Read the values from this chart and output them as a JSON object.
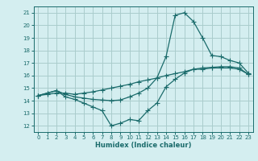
{
  "title": "",
  "xlabel": "Humidex (Indice chaleur)",
  "bg_color": "#d4eef0",
  "grid_color": "#aacccc",
  "line_color": "#1a6b6b",
  "xlim": [
    -0.5,
    23.5
  ],
  "ylim": [
    11.5,
    21.5
  ],
  "xticks": [
    0,
    1,
    2,
    3,
    4,
    5,
    6,
    7,
    8,
    9,
    10,
    11,
    12,
    13,
    14,
    15,
    16,
    17,
    18,
    19,
    20,
    21,
    22,
    23
  ],
  "yticks": [
    12,
    13,
    14,
    15,
    16,
    17,
    18,
    19,
    20,
    21
  ],
  "line1_x": [
    0,
    1,
    2,
    3,
    4,
    5,
    6,
    7,
    8,
    9,
    10,
    11,
    12,
    13,
    14,
    15,
    16,
    17,
    18,
    19,
    20,
    21,
    22,
    23
  ],
  "line1_y": [
    14.4,
    14.6,
    14.8,
    14.5,
    14.3,
    14.2,
    14.1,
    14.05,
    14.0,
    14.05,
    14.3,
    14.6,
    15.0,
    15.8,
    17.5,
    20.8,
    21.0,
    20.3,
    19.0,
    17.6,
    17.5,
    17.2,
    17.0,
    16.2
  ],
  "line2_x": [
    0,
    1,
    2,
    3,
    4,
    5,
    6,
    7,
    8,
    9,
    10,
    11,
    12,
    13,
    14,
    15,
    16,
    17,
    18,
    19,
    20,
    21,
    22,
    23
  ],
  "line2_y": [
    14.4,
    14.6,
    14.8,
    14.3,
    14.1,
    13.8,
    13.5,
    13.2,
    12.0,
    12.2,
    12.5,
    12.4,
    13.2,
    13.8,
    15.1,
    15.7,
    16.2,
    16.5,
    16.5,
    16.6,
    16.6,
    16.6,
    16.5,
    16.1
  ],
  "line3_x": [
    0,
    1,
    2,
    3,
    4,
    5,
    6,
    7,
    8,
    9,
    10,
    11,
    12,
    13,
    14,
    15,
    16,
    17,
    18,
    19,
    20,
    21,
    22,
    23
  ],
  "line3_y": [
    14.4,
    14.5,
    14.6,
    14.6,
    14.5,
    14.6,
    14.7,
    14.85,
    15.0,
    15.15,
    15.3,
    15.5,
    15.65,
    15.8,
    16.0,
    16.15,
    16.3,
    16.5,
    16.6,
    16.65,
    16.7,
    16.7,
    16.6,
    16.1
  ]
}
